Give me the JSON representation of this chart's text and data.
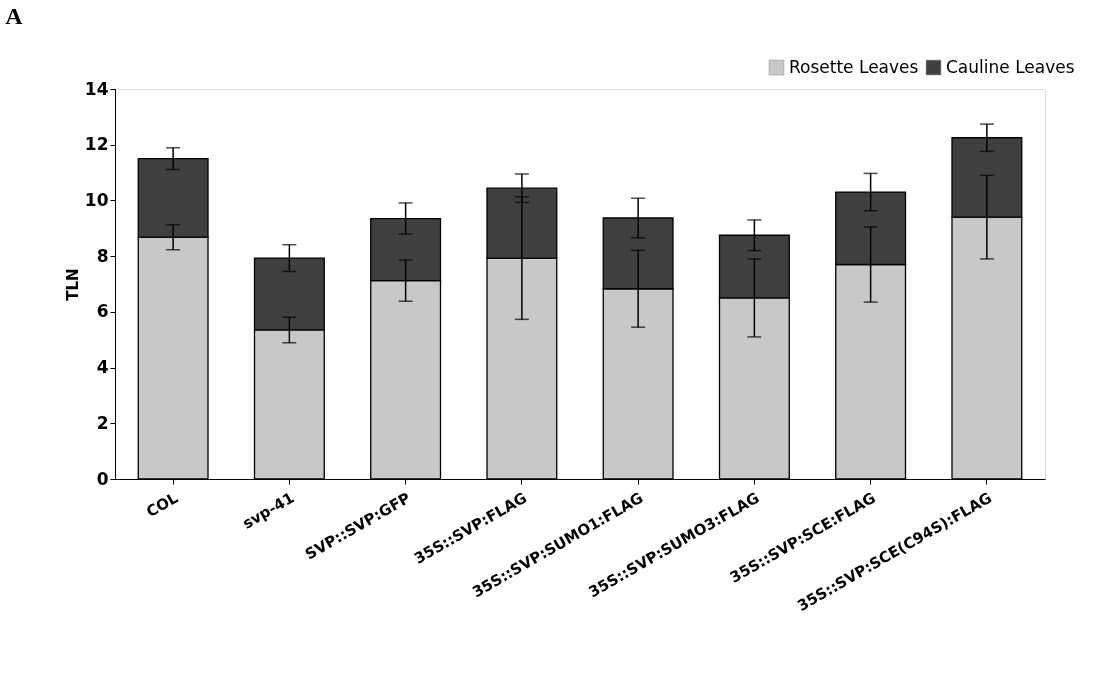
{
  "chart_data": {
    "type": "bar",
    "title": "A",
    "ylabel": "TLN",
    "stacked": true,
    "categories": [
      "COL",
      "svp-41",
      "SVP::SVP:GFP",
      "35S::SVP:FLAG",
      "35S::SVP:SUMO1:FLAG",
      "35S::SVP:SUMO3:FLAG",
      "35S::SVP:SCE:FLAG",
      "35S::SVP:SCE(C94S):FLAG"
    ],
    "series": [
      {
        "name": "Rosette Leaves",
        "color": "#c8c8c8",
        "values": [
          8.68,
          5.35,
          7.12,
          7.93,
          6.83,
          6.5,
          7.7,
          9.4
        ],
        "errors": [
          0.45,
          0.46,
          0.74,
          2.2,
          1.38,
          1.4,
          1.35,
          1.5
        ]
      },
      {
        "name": "Cauline Leaves",
        "color": "#404040",
        "values": [
          2.82,
          2.58,
          2.23,
          2.51,
          2.54,
          2.25,
          2.6,
          2.85
        ],
        "errors": [
          0.39,
          0.48,
          0.56,
          0.51,
          0.71,
          0.55,
          0.67,
          0.49
        ]
      }
    ],
    "ylim": [
      0,
      14
    ],
    "yticks": [
      0,
      2,
      4,
      6,
      8,
      10,
      12,
      14
    ],
    "grid": false,
    "legend": "top right"
  }
}
